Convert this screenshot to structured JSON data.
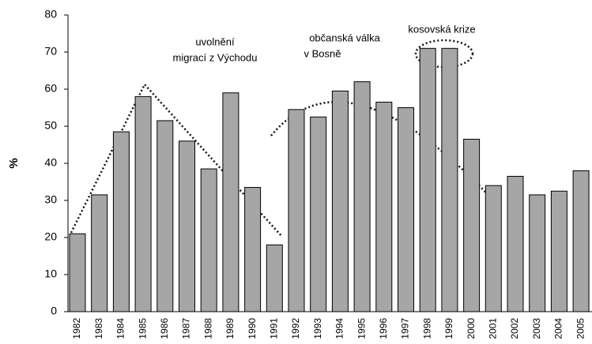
{
  "chart_data": {
    "type": "bar",
    "ylabel": "%",
    "categories": [
      "1982",
      "1983",
      "1984",
      "1985",
      "1986",
      "1987",
      "1988",
      "1989",
      "1990",
      "1991",
      "1992",
      "1993",
      "1994",
      "1995",
      "1996",
      "1997",
      "1998",
      "1999",
      "2000",
      "2001",
      "2002",
      "2003",
      "2004",
      "2005"
    ],
    "values": [
      21,
      31.5,
      48.5,
      58,
      51.5,
      46,
      38.5,
      59,
      33.5,
      18,
      54.5,
      52.5,
      59.5,
      62,
      56.5,
      55,
      71,
      71,
      46.5,
      34,
      36.5,
      31.5,
      32.5,
      38
    ],
    "color": "#a6a6a6",
    "ylim": [
      0,
      80
    ],
    "yticks": [
      0,
      10,
      20,
      30,
      40,
      50,
      60,
      70,
      80
    ],
    "grid": false,
    "annotations": [
      [
        "uvolnění",
        "migrací z Východu"
      ],
      [
        "občanská válka",
        "v Bosně"
      ],
      [
        "kosovská krize"
      ]
    ]
  }
}
